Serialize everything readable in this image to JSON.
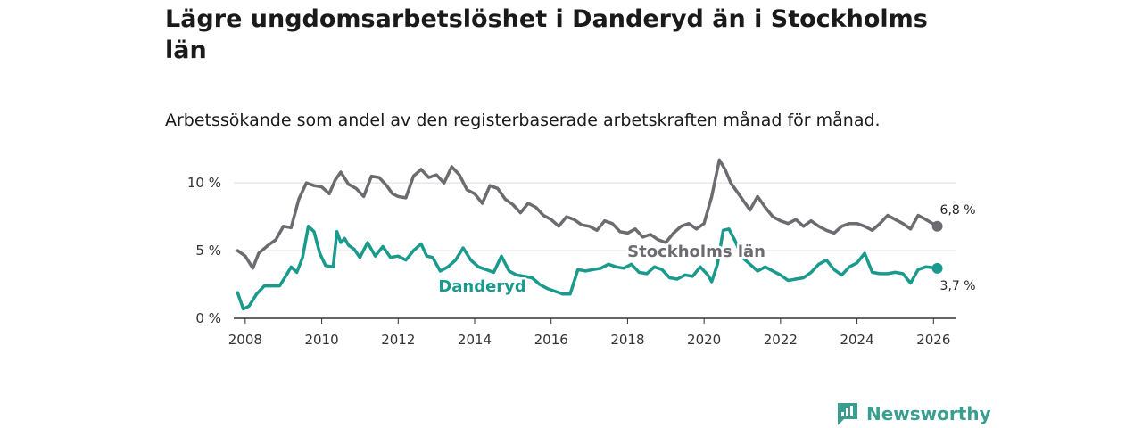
{
  "header": {
    "title": "Lägre ungdomsarbetslöshet i Danderyd än i Stockholms län",
    "subtitle": "Arbetssökande som andel av den registerbaserade arbetskraften månad för månad."
  },
  "brand": {
    "name": "Newsworthy",
    "color": "#3a9e8f"
  },
  "chart_data": {
    "type": "line",
    "title": "Lägre ungdomsarbetslöshet i Danderyd än i Stockholms län",
    "subtitle": "Arbetssökande som andel av den registerbaserade arbetskraften månad för månad.",
    "xlabel": "",
    "ylabel": "",
    "xlim": [
      2007.7,
      2026.6
    ],
    "ylim": [
      0,
      11
    ],
    "y_ticks": [
      0,
      5,
      10
    ],
    "y_tick_labels": [
      "0 %",
      "5 %",
      "10 %"
    ],
    "x_ticks": [
      2008,
      2010,
      2012,
      2014,
      2016,
      2018,
      2020,
      2022,
      2024,
      2026
    ],
    "x_tick_labels": [
      "2008",
      "2010",
      "2012",
      "2014",
      "2016",
      "2018",
      "2020",
      "2022",
      "2024",
      "2026"
    ],
    "grid": true,
    "series": [
      {
        "name": "Stockholms län",
        "color": "#6b6b70",
        "end_label": "6,8 %",
        "x": [
          2007.8,
          2008.0,
          2008.2,
          2008.35,
          2008.6,
          2008.8,
          2009.0,
          2009.2,
          2009.4,
          2009.6,
          2009.8,
          2010.0,
          2010.2,
          2010.35,
          2010.5,
          2010.7,
          2010.9,
          2011.1,
          2011.3,
          2011.5,
          2011.7,
          2011.85,
          2012.0,
          2012.2,
          2012.4,
          2012.6,
          2012.8,
          2013.0,
          2013.2,
          2013.4,
          2013.6,
          2013.8,
          2014.0,
          2014.2,
          2014.4,
          2014.6,
          2014.8,
          2015.0,
          2015.2,
          2015.4,
          2015.6,
          2015.8,
          2016.0,
          2016.2,
          2016.4,
          2016.6,
          2016.8,
          2017.0,
          2017.2,
          2017.4,
          2017.6,
          2017.8,
          2018.0,
          2018.2,
          2018.4,
          2018.6,
          2018.8,
          2019.0,
          2019.2,
          2019.4,
          2019.6,
          2019.8,
          2020.0,
          2020.2,
          2020.4,
          2020.55,
          2020.7,
          2020.85,
          2021.0,
          2021.2,
          2021.4,
          2021.6,
          2021.8,
          2022.0,
          2022.2,
          2022.4,
          2022.6,
          2022.8,
          2023.0,
          2023.2,
          2023.4,
          2023.6,
          2023.8,
          2024.0,
          2024.2,
          2024.4,
          2024.6,
          2024.8,
          2025.0,
          2025.2,
          2025.4,
          2025.6,
          2025.8,
          2026.1
        ],
        "values": [
          5.0,
          4.6,
          3.7,
          4.8,
          5.4,
          5.8,
          6.8,
          6.7,
          8.8,
          10.0,
          9.8,
          9.7,
          9.2,
          10.2,
          10.8,
          9.9,
          9.6,
          9.0,
          10.5,
          10.4,
          9.8,
          9.2,
          9.0,
          8.9,
          10.5,
          11.0,
          10.4,
          10.6,
          10.0,
          11.2,
          10.6,
          9.5,
          9.2,
          8.5,
          9.8,
          9.6,
          8.8,
          8.4,
          7.8,
          8.5,
          8.2,
          7.6,
          7.3,
          6.8,
          7.5,
          7.3,
          6.9,
          6.8,
          6.5,
          7.2,
          7.0,
          6.4,
          6.3,
          6.6,
          6.0,
          6.2,
          5.8,
          5.6,
          6.3,
          6.8,
          7.0,
          6.6,
          7.0,
          9.0,
          11.7,
          11.0,
          10.0,
          9.4,
          8.8,
          8.0,
          9.0,
          8.2,
          7.5,
          7.2,
          7.0,
          7.3,
          6.8,
          7.2,
          6.8,
          6.5,
          6.3,
          6.8,
          7.0,
          7.0,
          6.8,
          6.5,
          7.0,
          7.6,
          7.3,
          7.0,
          6.6,
          7.6,
          7.3,
          6.8
        ]
      },
      {
        "name": "Danderyd",
        "color": "#1a9a8c",
        "end_label": "3,7 %",
        "x": [
          2007.8,
          2007.95,
          2008.1,
          2008.3,
          2008.5,
          2008.7,
          2008.9,
          2009.1,
          2009.2,
          2009.35,
          2009.5,
          2009.65,
          2009.8,
          2009.95,
          2010.1,
          2010.3,
          2010.4,
          2010.5,
          2010.6,
          2010.7,
          2010.85,
          2011.0,
          2011.2,
          2011.4,
          2011.6,
          2011.8,
          2012.0,
          2012.2,
          2012.4,
          2012.6,
          2012.75,
          2012.9,
          2013.1,
          2013.3,
          2013.5,
          2013.7,
          2013.9,
          2014.1,
          2014.3,
          2014.5,
          2014.7,
          2014.9,
          2015.1,
          2015.3,
          2015.5,
          2015.7,
          2015.9,
          2016.1,
          2016.3,
          2016.5,
          2016.7,
          2016.9,
          2017.1,
          2017.3,
          2017.5,
          2017.7,
          2017.9,
          2018.1,
          2018.3,
          2018.5,
          2018.7,
          2018.9,
          2019.1,
          2019.3,
          2019.5,
          2019.7,
          2019.9,
          2020.1,
          2020.2,
          2020.35,
          2020.5,
          2020.65,
          2020.8,
          2021.0,
          2021.2,
          2021.4,
          2021.6,
          2021.8,
          2022.0,
          2022.2,
          2022.4,
          2022.6,
          2022.8,
          2023.0,
          2023.2,
          2023.4,
          2023.6,
          2023.8,
          2024.0,
          2024.2,
          2024.4,
          2024.6,
          2024.8,
          2025.0,
          2025.2,
          2025.4,
          2025.6,
          2025.8,
          2026.1
        ],
        "values": [
          1.9,
          0.7,
          0.9,
          1.8,
          2.4,
          2.4,
          2.4,
          3.3,
          3.8,
          3.4,
          4.5,
          6.8,
          6.4,
          4.8,
          3.9,
          3.8,
          6.4,
          5.6,
          5.9,
          5.4,
          5.1,
          4.5,
          5.6,
          4.6,
          5.3,
          4.5,
          4.6,
          4.3,
          5.0,
          5.5,
          4.6,
          4.5,
          3.5,
          3.8,
          4.3,
          5.2,
          4.3,
          3.8,
          3.6,
          3.4,
          4.6,
          3.5,
          3.2,
          3.1,
          3.0,
          2.5,
          2.2,
          2.0,
          1.8,
          1.8,
          3.6,
          3.5,
          3.6,
          3.7,
          4.0,
          3.8,
          3.7,
          4.0,
          3.4,
          3.3,
          3.8,
          3.6,
          3.0,
          2.9,
          3.2,
          3.1,
          3.8,
          3.2,
          2.7,
          4.0,
          6.5,
          6.6,
          5.8,
          4.5,
          4.0,
          3.5,
          3.8,
          3.5,
          3.2,
          2.8,
          2.9,
          3.0,
          3.4,
          4.0,
          4.3,
          3.6,
          3.2,
          3.8,
          4.1,
          4.8,
          3.4,
          3.3,
          3.3,
          3.4,
          3.3,
          2.6,
          3.6,
          3.8,
          3.7
        ]
      }
    ]
  }
}
